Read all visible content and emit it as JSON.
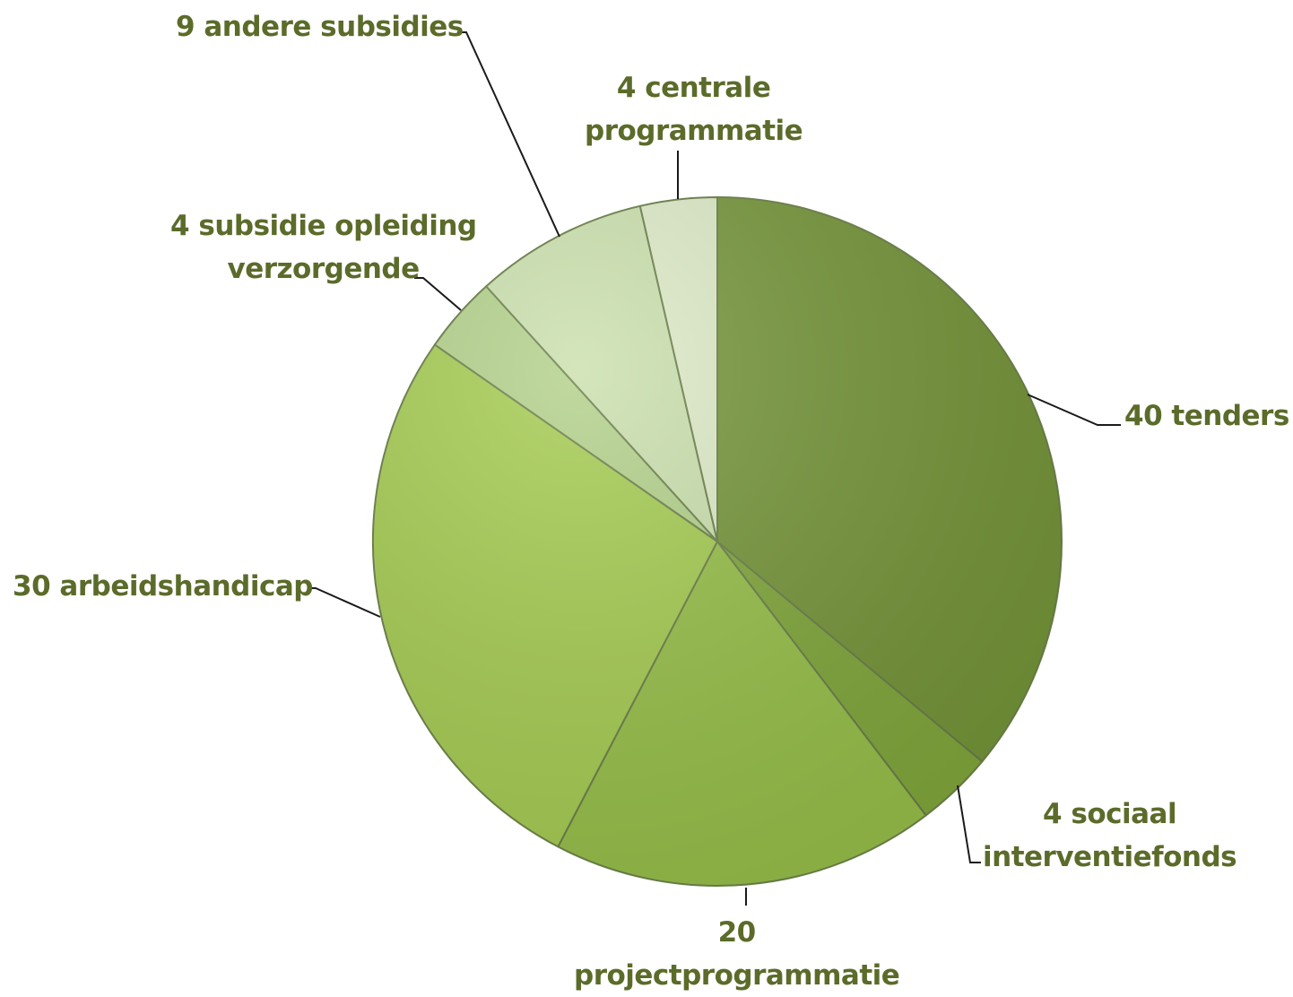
{
  "chart_data": {
    "type": "pie",
    "title": "",
    "start_angle_deg": 0,
    "direction": "clockwise",
    "slices": [
      {
        "value": 40,
        "line1": "40 tenders",
        "line2": "",
        "color": "#76963a"
      },
      {
        "value": 4,
        "line1": "4 sociaal",
        "line2": "interventiefonds",
        "color": "#82a83c"
      },
      {
        "value": 20,
        "line1": "20",
        "line2": "projectprogrammatie",
        "color": "#98c04a"
      },
      {
        "value": 30,
        "line1": "30 arbeidshandicap",
        "line2": "",
        "color": "#a6cc52"
      },
      {
        "value": 4,
        "line1": "4 subsidie opleiding",
        "line2": "verzorgende",
        "color": "#b3d18a"
      },
      {
        "value": 9,
        "line1": "9 andere subsidies",
        "line2": "",
        "color": "#cbe0ad"
      },
      {
        "value": 4,
        "line1": "4 centrale",
        "line2": "programmatie",
        "color": "#deebc8"
      }
    ],
    "label_color": "#5b6b2a"
  }
}
